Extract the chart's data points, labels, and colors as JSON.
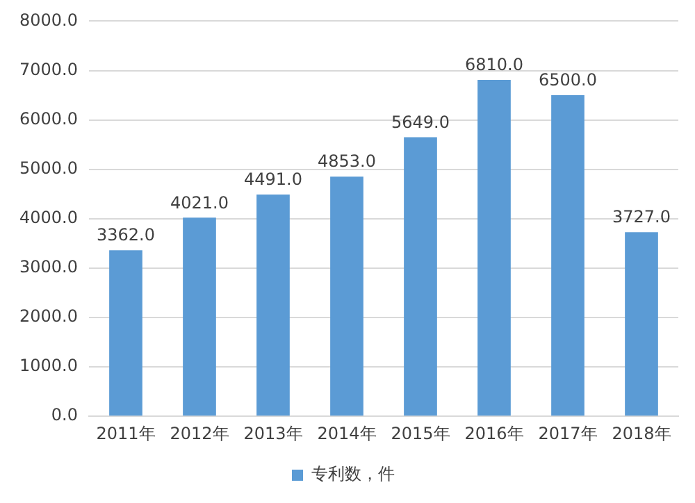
{
  "chart_data": {
    "type": "bar",
    "categories": [
      "2011年",
      "2012年",
      "2013年",
      "2014年",
      "2015年",
      "2016年",
      "2017年",
      "2018年"
    ],
    "series": [
      {
        "name": "专利数，件",
        "color": "#5b9bd5",
        "values": [
          3362,
          4021,
          4491,
          4853,
          5649,
          6810,
          6500,
          3727
        ],
        "value_labels": [
          "3362.0",
          "4021.0",
          "4491.0",
          "4853.0",
          "5649.0",
          "6810.0",
          "6500.0",
          "3727.0"
        ]
      }
    ],
    "ylim": [
      0,
      8000
    ],
    "yticks": [
      {
        "value": 0,
        "label": "0.0"
      },
      {
        "value": 1000,
        "label": "1000.0"
      },
      {
        "value": 2000,
        "label": "2000.0"
      },
      {
        "value": 3000,
        "label": "3000.0"
      },
      {
        "value": 4000,
        "label": "4000.0"
      },
      {
        "value": 5000,
        "label": "5000.0"
      },
      {
        "value": 6000,
        "label": "6000.0"
      },
      {
        "value": 7000,
        "label": "7000.0"
      },
      {
        "value": 8000,
        "label": "8000.0"
      }
    ],
    "grid": "y",
    "legend": "bottom"
  }
}
